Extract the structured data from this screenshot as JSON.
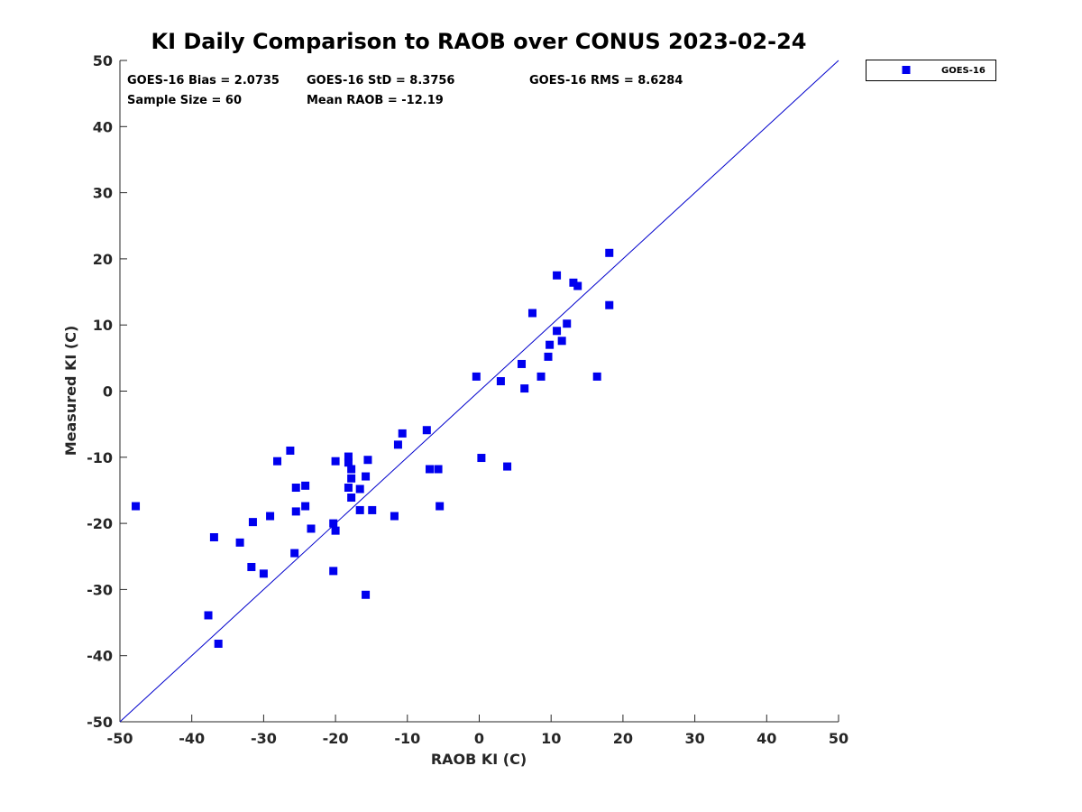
{
  "chart_data": {
    "type": "scatter",
    "title": "KI Daily Comparison to RAOB over CONUS 2023-02-24",
    "xlabel": "RAOB KI (C)",
    "ylabel": "Measured KI (C)",
    "xlim": [
      -50,
      50
    ],
    "ylim": [
      -50,
      50
    ],
    "xticks": [
      -50,
      -40,
      -30,
      -20,
      -10,
      0,
      10,
      20,
      30,
      40,
      50
    ],
    "yticks": [
      -50,
      -40,
      -30,
      -20,
      -10,
      0,
      10,
      20,
      30,
      40,
      50
    ],
    "xtick_labels": [
      "-50",
      "-40",
      "-30",
      "-20",
      "-10",
      "0",
      "10",
      "20",
      "30",
      "40",
      "50"
    ],
    "ytick_labels": [
      "-50",
      "-40",
      "-30",
      "-20",
      "-10",
      "0",
      "10",
      "20",
      "30",
      "40",
      "50"
    ],
    "grid": false,
    "legend_position": "top-right outside",
    "reference_line": {
      "type": "one-to-one",
      "from": [
        -50,
        -50
      ],
      "to": [
        50,
        50
      ],
      "color": "#0000cc"
    },
    "stats": {
      "bias": "GOES-16 Bias = 2.0735",
      "std": "GOES-16 StD = 8.3756",
      "rms": "GOES-16 RMS = 8.6284",
      "sample": "Sample Size = 60",
      "mean": "Mean RAOB = -12.19"
    },
    "series": [
      {
        "name": "GOES-16",
        "color": "#0000ee",
        "marker": "square",
        "points": [
          [
            -47.8,
            -17.4
          ],
          [
            -37.7,
            -33.9
          ],
          [
            -36.9,
            -22.1
          ],
          [
            -36.3,
            -38.2
          ],
          [
            -33.3,
            -22.9
          ],
          [
            -31.7,
            -26.6
          ],
          [
            -31.5,
            -19.8
          ],
          [
            -30.0,
            -27.6
          ],
          [
            -29.1,
            -18.9
          ],
          [
            -28.1,
            -10.6
          ],
          [
            -26.3,
            -9.0
          ],
          [
            -25.7,
            -24.5
          ],
          [
            -25.5,
            -14.6
          ],
          [
            -25.5,
            -18.2
          ],
          [
            -24.2,
            -14.3
          ],
          [
            -24.2,
            -17.4
          ],
          [
            -23.4,
            -20.8
          ],
          [
            -20.3,
            -20.0
          ],
          [
            -20.3,
            -27.2
          ],
          [
            -20.0,
            -21.1
          ],
          [
            -20.0,
            -10.6
          ],
          [
            -18.2,
            -9.9
          ],
          [
            -18.2,
            -10.8
          ],
          [
            -18.2,
            -14.6
          ],
          [
            -17.8,
            -11.8
          ],
          [
            -17.8,
            -13.2
          ],
          [
            -17.8,
            -16.1
          ],
          [
            -16.6,
            -14.8
          ],
          [
            -16.6,
            -18.0
          ],
          [
            -15.8,
            -12.9
          ],
          [
            -15.8,
            -30.8
          ],
          [
            -15.5,
            -10.4
          ],
          [
            -14.9,
            -18.0
          ],
          [
            -11.8,
            -18.9
          ],
          [
            -11.3,
            -8.1
          ],
          [
            -10.7,
            -6.4
          ],
          [
            -7.3,
            -5.9
          ],
          [
            -6.9,
            -11.8
          ],
          [
            -5.7,
            -11.8
          ],
          [
            -5.5,
            -17.4
          ],
          [
            -0.4,
            2.2
          ],
          [
            0.3,
            -10.1
          ],
          [
            3.0,
            1.5
          ],
          [
            3.9,
            -11.4
          ],
          [
            5.9,
            4.1
          ],
          [
            6.3,
            0.4
          ],
          [
            7.4,
            11.8
          ],
          [
            8.6,
            2.2
          ],
          [
            9.6,
            5.2
          ],
          [
            9.8,
            7.0
          ],
          [
            10.8,
            17.5
          ],
          [
            10.8,
            9.1
          ],
          [
            11.5,
            7.6
          ],
          [
            12.2,
            10.2
          ],
          [
            13.1,
            16.4
          ],
          [
            13.7,
            15.9
          ],
          [
            16.4,
            2.2
          ],
          [
            18.1,
            20.9
          ],
          [
            18.1,
            13.0
          ]
        ]
      }
    ]
  }
}
